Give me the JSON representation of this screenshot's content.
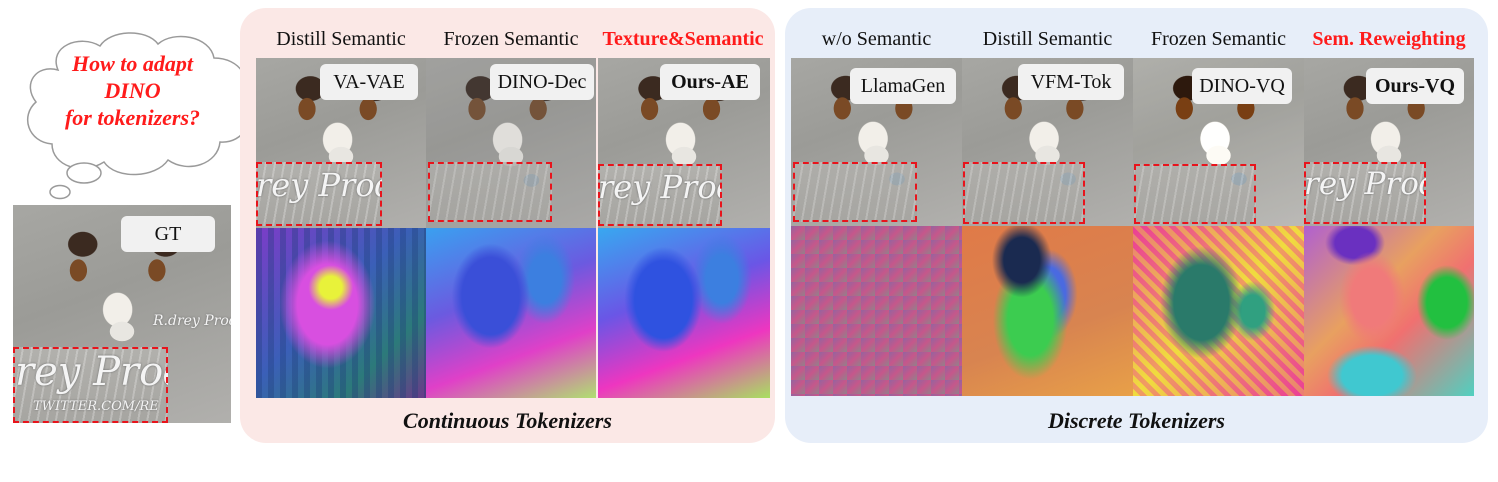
{
  "bubble": {
    "lines": [
      "How to adapt",
      "DINO",
      "for tokenizers?"
    ]
  },
  "gt": {
    "label": "GT",
    "watermark": "R.drey Produ",
    "crop_text": "rey Produ",
    "crop_sub": "TWITTER.COM/RE"
  },
  "continuous": {
    "title": "Continuous Tokenizers",
    "columns": [
      {
        "header": "Distill Semantic",
        "label": "VA-VAE",
        "highlight": false,
        "bold_label": false
      },
      {
        "header": "Frozen Semantic",
        "label": "DINO-Dec",
        "highlight": false,
        "bold_label": false
      },
      {
        "header": "Texture&Semantic",
        "label": "Ours-AE",
        "highlight": true,
        "bold_label": true
      }
    ]
  },
  "discrete": {
    "title": "Discrete Tokenizers",
    "columns": [
      {
        "header": "w/o Semantic",
        "label": "LlamaGen",
        "highlight": false,
        "bold_label": false
      },
      {
        "header": "Distill Semantic",
        "label": "VFM-Tok",
        "highlight": false,
        "bold_label": false
      },
      {
        "header": "Frozen Semantic",
        "label": "DINO-VQ",
        "highlight": false,
        "bold_label": false
      },
      {
        "header": "Sem. Reweighting",
        "label": "Ours-VQ",
        "highlight": true,
        "bold_label": true
      }
    ]
  },
  "colors": {
    "accent_red": "#ff1b1b",
    "dashed_red": "#e8141c",
    "continuous_bg": "#fbe8e6",
    "discrete_bg": "#e7eef9"
  }
}
